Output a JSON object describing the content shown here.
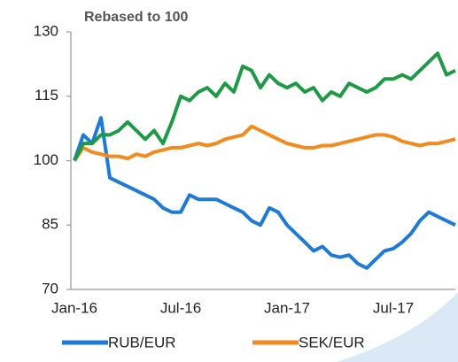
{
  "chart_data": {
    "type": "line",
    "title": "Rebased to 100",
    "categories": [
      "Jan-16",
      null,
      null,
      null,
      null,
      null,
      null,
      null,
      null,
      null,
      null,
      null,
      "Jul-16",
      null,
      null,
      null,
      null,
      null,
      null,
      null,
      null,
      null,
      null,
      null,
      "Jan-17",
      null,
      null,
      null,
      null,
      null,
      null,
      null,
      null,
      null,
      null,
      null,
      "Jul-17",
      null,
      null,
      null,
      null,
      null,
      null,
      null
    ],
    "series": [
      {
        "name": "RUB/EUR",
        "color": "#1f7ad6",
        "values": [
          100,
          106,
          104,
          110,
          96,
          95,
          94,
          93,
          92,
          91,
          89,
          88,
          88,
          92,
          91,
          91,
          91,
          90,
          89,
          88,
          86,
          85,
          89,
          88,
          85,
          83,
          81,
          79,
          80,
          78,
          77.5,
          78,
          76,
          75,
          77,
          79,
          79.5,
          81,
          83,
          86,
          88,
          87,
          86,
          85
        ]
      },
      {
        "name": "SEK/EUR",
        "color": "#f28a1e",
        "values": [
          100,
          103,
          102,
          101.5,
          101,
          101,
          100.5,
          101.5,
          101,
          102,
          102.5,
          103,
          103,
          103.5,
          104,
          103.5,
          104,
          105,
          105.5,
          106,
          108,
          107,
          106,
          105,
          104,
          103.5,
          103,
          103,
          103.5,
          103.5,
          104,
          104.5,
          105,
          105.5,
          106,
          106,
          105.5,
          104.5,
          104,
          103.5,
          104,
          104,
          104.5,
          105
        ]
      },
      {
        "color": "#1e9a46",
        "values": [
          100,
          104,
          104,
          106,
          106,
          107,
          109,
          107,
          105,
          107,
          104,
          109,
          115,
          114,
          116,
          117,
          115,
          118,
          116,
          122,
          121,
          117,
          120,
          118,
          117,
          118,
          116,
          117,
          114,
          116,
          115,
          118,
          117,
          116,
          117,
          119,
          119,
          120,
          119,
          121,
          123,
          125,
          120,
          121
        ]
      }
    ],
    "ylim": [
      70,
      130
    ],
    "yticks": [
      70,
      85,
      100,
      115,
      130
    ],
    "grid": false
  }
}
